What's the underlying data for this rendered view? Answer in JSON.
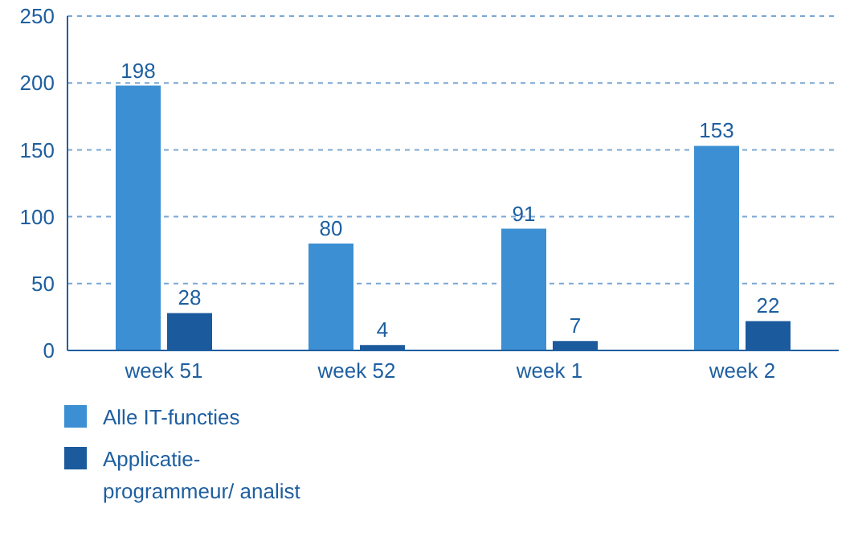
{
  "chart_data": {
    "type": "bar",
    "categories": [
      "week 51",
      "week 52",
      "week 1",
      "week 2"
    ],
    "series": [
      {
        "name": "Alle IT-functies",
        "color": "#3b8fd2",
        "values": [
          198,
          80,
          91,
          153
        ]
      },
      {
        "name": "Applicatie-programmeur/ analist",
        "color": "#1b5a9c",
        "values": [
          28,
          4,
          7,
          22
        ]
      }
    ],
    "ylim": [
      0,
      250
    ],
    "yticks": [
      0,
      50,
      100,
      150,
      200,
      250
    ],
    "grid": "y",
    "legend": "bottom left",
    "data_labels": true
  }
}
